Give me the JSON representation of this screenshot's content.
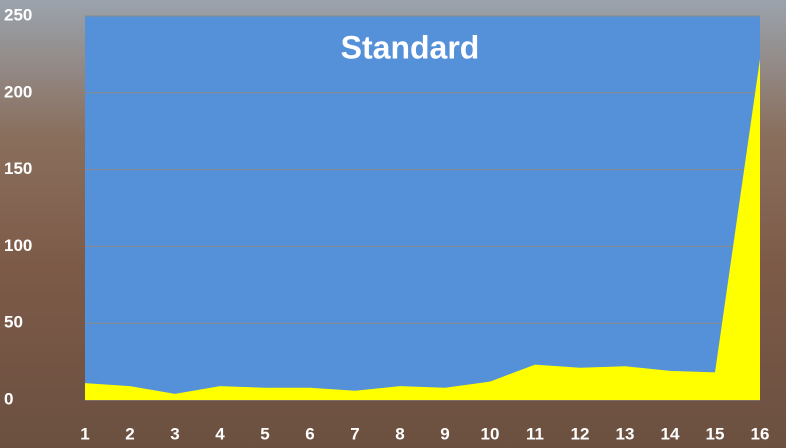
{
  "chart_data": {
    "type": "area",
    "title": "Standard",
    "categories": [
      "1",
      "2",
      "3",
      "4",
      "5",
      "6",
      "7",
      "8",
      "9",
      "10",
      "11",
      "12",
      "13",
      "14",
      "15",
      "16"
    ],
    "values": [
      11,
      9,
      4,
      9,
      8,
      8,
      6,
      9,
      8,
      12,
      23,
      21,
      22,
      19,
      18,
      222
    ],
    "color": "#ffff00",
    "plot_background": "#5591d9",
    "ylim": [
      0,
      250
    ],
    "yticks": [
      0,
      50,
      100,
      150,
      200,
      250
    ],
    "grid": true
  }
}
